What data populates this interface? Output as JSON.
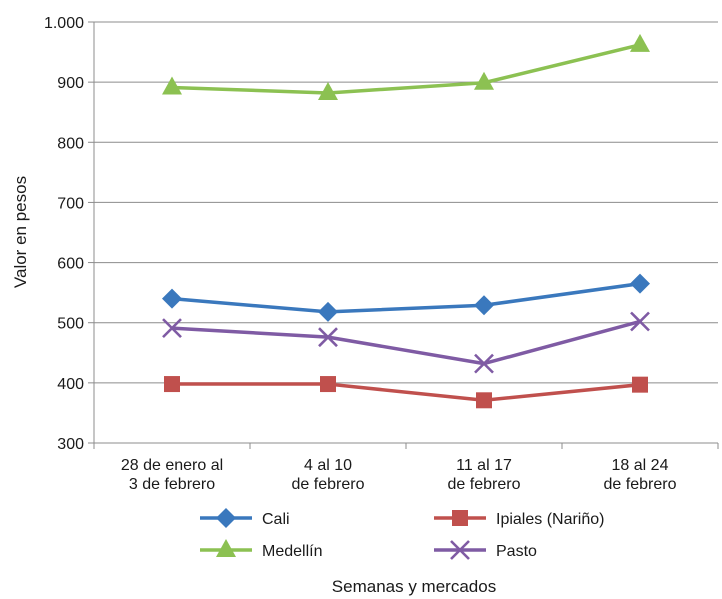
{
  "chart_data": {
    "type": "line",
    "categories": [
      [
        "28 de enero al",
        "3 de febrero"
      ],
      [
        "4 al 10",
        "de febrero"
      ],
      [
        "11 al 17",
        "de febrero"
      ],
      [
        "18 al 24",
        "de febrero"
      ]
    ],
    "ylabel": "Valor en pesos",
    "xlabel": "Semanas y mercados",
    "ylim": [
      300,
      1000
    ],
    "yticks": [
      {
        "value": 300,
        "label": "300"
      },
      {
        "value": 400,
        "label": "400"
      },
      {
        "value": 500,
        "label": "500"
      },
      {
        "value": 600,
        "label": "600"
      },
      {
        "value": 700,
        "label": "700"
      },
      {
        "value": 800,
        "label": "800"
      },
      {
        "value": 900,
        "label": "900"
      },
      {
        "value": 1000,
        "label": "1.000"
      }
    ],
    "grid": true,
    "legend_position": "bottom",
    "series": [
      {
        "name": "Cali",
        "values": [
          540,
          518,
          529,
          565
        ],
        "color": "#3a78bd",
        "marker": "diamond"
      },
      {
        "name": "Ipiales (Nariño)",
        "values": [
          398,
          398,
          371,
          397
        ],
        "color": "#c0504d",
        "marker": "square"
      },
      {
        "name": "Medellín",
        "values": [
          891,
          882,
          899,
          962
        ],
        "color": "#8cc152",
        "marker": "triangle"
      },
      {
        "name": "Pasto",
        "values": [
          491,
          476,
          432,
          502
        ],
        "color": "#7f5ba4",
        "marker": "x"
      }
    ]
  }
}
